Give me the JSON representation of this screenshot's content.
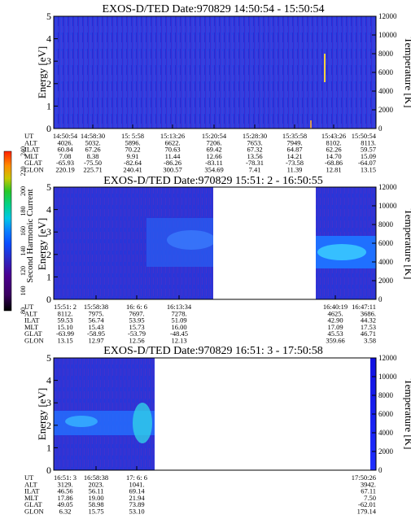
{
  "panels": [
    {
      "title": "EXOS-D/TED   Date:970829  14:50:54 - 15:50:54",
      "ylabel_left": "Energy [eV]",
      "ylabel_right": "Temperature [K]",
      "yticks_left": [
        "0",
        "1",
        "2",
        "3",
        "4",
        "5"
      ],
      "yticks_right": [
        "0",
        "2000",
        "4000",
        "6000",
        "8000",
        "10000",
        "12000"
      ],
      "table": [
        {
          "label": "UT",
          "values": [
            "14:50:54",
            "14:58:30",
            "15: 5:58",
            "15:13:26",
            "15:20:54",
            "15:28:30",
            "15:35:58",
            "15:43:26",
            "15:50:54"
          ]
        },
        {
          "label": "ALT",
          "values": [
            "4026.",
            "5032.",
            "5896.",
            "6622.",
            "7206.",
            "7653.",
            "7949.",
            "8102.",
            "8113."
          ]
        },
        {
          "label": "ILAT",
          "values": [
            "60.84",
            "67.26",
            "70.22",
            "70.63",
            "69.42",
            "67.32",
            "64.87",
            "62.26",
            "59.57"
          ]
        },
        {
          "label": "MLT",
          "values": [
            "7.08",
            "8.38",
            "9.91",
            "11.44",
            "12.66",
            "13.56",
            "14.21",
            "14.70",
            "15.09"
          ]
        },
        {
          "label": "GLAT",
          "values": [
            "-65.93",
            "-75.50",
            "-82.64",
            "-86.26",
            "-83.11",
            "-78.31",
            "-73.58",
            "-68.86",
            "-64.07"
          ]
        },
        {
          "label": "GLON",
          "values": [
            "220.19",
            "225.71",
            "240.41",
            "300.57",
            "354.69",
            "7.41",
            "11.39",
            "12.81",
            "13.15"
          ]
        }
      ]
    },
    {
      "title": "EXOS-D/TED   Date:970829  15:51: 2 - 16:50:55",
      "ylabel_left": "Energy [eV]",
      "ylabel_right": "Temperature [K]",
      "yticks_left": [
        "0",
        "1",
        "2",
        "3",
        "4",
        "5"
      ],
      "yticks_right": [
        "0",
        "2000",
        "4000",
        "6000",
        "8000",
        "10000",
        "12000"
      ],
      "table": [
        {
          "label": "UT",
          "values": [
            "15:51: 2",
            "15:58:38",
            "16: 6: 6",
            "16:13:34",
            "",
            "16:40:19",
            "16:47:11"
          ]
        },
        {
          "label": "ALT",
          "values": [
            "8112.",
            "7975.",
            "7697.",
            "7278.",
            "",
            "4625.",
            "3686."
          ]
        },
        {
          "label": "ILAT",
          "values": [
            "59.53",
            "56.74",
            "53.95",
            "51.09",
            "",
            "42.90",
            "44.32"
          ]
        },
        {
          "label": "MLT",
          "values": [
            "15.10",
            "15.43",
            "15.73",
            "16.00",
            "",
            "17.09",
            "17.53"
          ]
        },
        {
          "label": "GLAT",
          "values": [
            "-63.99",
            "-58.95",
            "-53.79",
            "-48.45",
            "",
            "45.53",
            "46.71"
          ]
        },
        {
          "label": "GLON",
          "values": [
            "13.15",
            "12.97",
            "12.56",
            "12.13",
            "",
            "359.66",
            "3.58"
          ]
        }
      ]
    },
    {
      "title": "EXOS-D/TED   Date:970829  16:51: 3 - 17:50:58",
      "ylabel_left": "Energy [eV]",
      "ylabel_right": "Temperature [K]",
      "yticks_left": [
        "0",
        "1",
        "2",
        "3",
        "4",
        "5"
      ],
      "yticks_right": [
        "0",
        "2000",
        "4000",
        "6000",
        "8000",
        "10000",
        "12000"
      ],
      "table": [
        {
          "label": "UT",
          "values": [
            "16:51: 3",
            "16:58:38",
            "17: 6: 6",
            "",
            "17:50:26"
          ]
        },
        {
          "label": "ALT",
          "values": [
            "3129.",
            "2023.",
            "1041.",
            "",
            "3942."
          ]
        },
        {
          "label": "ILAT",
          "values": [
            "46.56",
            "56.11",
            "69.14",
            "",
            "67.11"
          ]
        },
        {
          "label": "MLT",
          "values": [
            "17.86",
            "19.00",
            "21.94",
            "",
            "7.50"
          ]
        },
        {
          "label": "GLAT",
          "values": [
            "49.05",
            "58.98",
            "73.89",
            "",
            "-62.01"
          ]
        },
        {
          "label": "GLON",
          "values": [
            "6.32",
            "15.75",
            "53.10",
            "",
            "179.14"
          ]
        }
      ]
    }
  ],
  "colorbar": {
    "label": "Second Harmonic Current",
    "ticks": [
      "80",
      "100",
      "120",
      "140",
      "160",
      "180",
      "200",
      "220",
      "240"
    ],
    "colors": [
      "#000000",
      "#3a0060",
      "#4b0090",
      "#2a2ac8",
      "#0a4cff",
      "#0a7fff",
      "#00c8e6",
      "#00d28c",
      "#28c828",
      "#c8c800",
      "#ff8c00",
      "#ff2000"
    ]
  },
  "chart_data": [
    {
      "type": "heatmap",
      "title": "EXOS-D/TED   Date:970829  14:50:54 - 15:50:54",
      "xlabel": "UT",
      "ylabel": "Energy [eV]",
      "ylabel_right": "Temperature [K]",
      "x": [
        "14:50:54",
        "14:58:30",
        "15: 5:58",
        "15:13:26",
        "15:20:54",
        "15:28:30",
        "15:35:58",
        "15:43:26",
        "15:50:54"
      ],
      "ylim": [
        0,
        5
      ],
      "ylim_right": [
        0,
        12000
      ],
      "colorbar_range": [
        80,
        240
      ],
      "features": [
        {
          "description": "uniform background",
          "level": 120
        },
        {
          "description": "narrow spike near 15:46",
          "energy": [
            2.2,
            3.3
          ],
          "level": 240
        }
      ]
    },
    {
      "type": "heatmap",
      "title": "EXOS-D/TED   Date:970829  15:51: 2 - 16:50:55",
      "xlabel": "UT",
      "ylabel": "Energy [eV]",
      "ylabel_right": "Temperature [K]",
      "x": [
        "15:51: 2",
        "15:58:38",
        "16: 6: 6",
        "16:13:34",
        "16:40:19",
        "16:47:11"
      ],
      "ylim": [
        0,
        5
      ],
      "ylim_right": [
        0,
        12000
      ],
      "colorbar_range": [
        80,
        240
      ],
      "data_gap": [
        "16:14",
        "16:38"
      ],
      "features": [
        {
          "description": "band 16:02-16:14",
          "energy": [
            2.0,
            3.5
          ],
          "level": 140
        },
        {
          "description": "bright band 16:38-16:50",
          "energy": [
            1.8,
            3.0
          ],
          "level": 170
        }
      ]
    },
    {
      "type": "heatmap",
      "title": "EXOS-D/TED   Date:970829  16:51: 3 - 17:50:58",
      "xlabel": "UT",
      "ylabel": "Energy [eV]",
      "ylabel_right": "Temperature [K]",
      "x": [
        "16:51: 3",
        "16:58:38",
        "17: 6: 6",
        "17:50:26"
      ],
      "ylim": [
        0,
        5
      ],
      "ylim_right": [
        0,
        12000
      ],
      "colorbar_range": [
        80,
        240
      ],
      "data_gap": [
        "17:08",
        "17:50"
      ],
      "features": [
        {
          "description": "band around 2 eV",
          "energy": [
            1.8,
            2.6
          ],
          "level": 150
        },
        {
          "description": "bright patch near 17:05",
          "energy": [
            1.6,
            3.0
          ],
          "level": 170
        }
      ]
    }
  ]
}
